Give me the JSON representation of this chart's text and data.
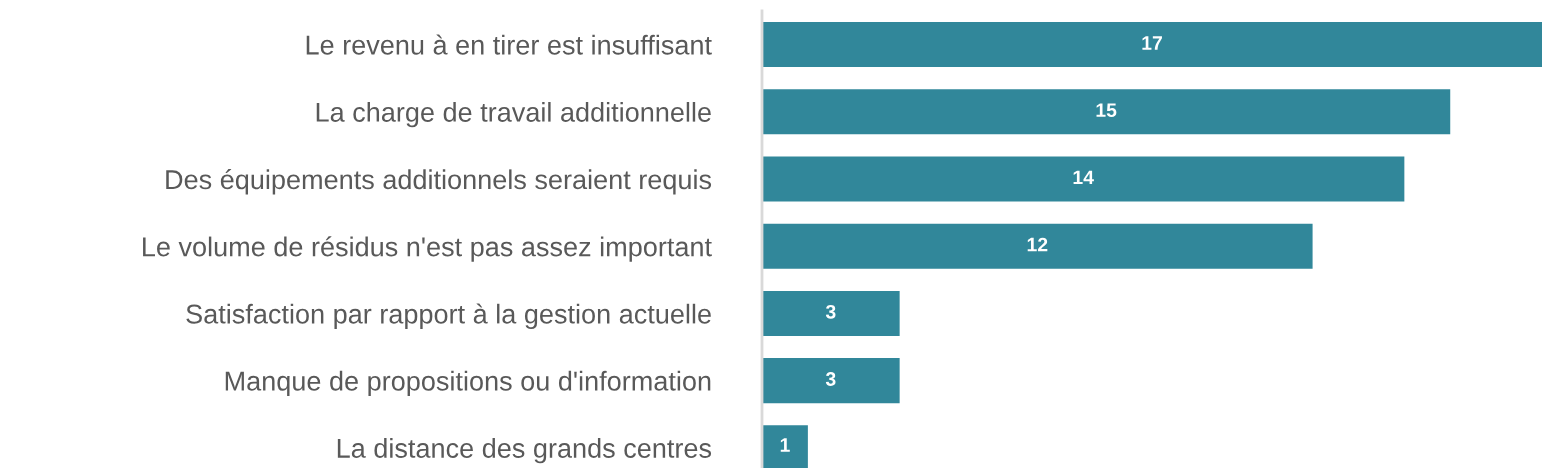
{
  "chart_data": {
    "type": "bar",
    "orientation": "horizontal",
    "categories": [
      "Le revenu à en tirer est insuffisant",
      "La charge de travail additionnelle",
      "Des équipements additionnels seraient requis",
      "Le volume de résidus n'est pas assez important",
      "Satisfaction par rapport à la gestion actuelle",
      "Manque de propositions ou d'information",
      "La distance des grands centres"
    ],
    "values": [
      17,
      15,
      14,
      12,
      3,
      3,
      1
    ],
    "color": "#31879a",
    "data_labels": true,
    "tick_labels": "y"
  }
}
